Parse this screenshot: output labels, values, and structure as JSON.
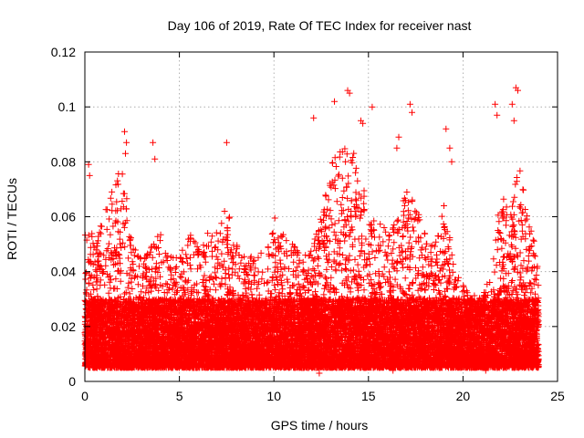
{
  "chart_data": {
    "type": "scatter",
    "title": "Day 106 of 2019, Rate Of TEC Index for receiver nast",
    "xlabel": "GPS time / hours",
    "ylabel": "ROTI / TECUs",
    "xlim": [
      0,
      25
    ],
    "ylim": [
      0,
      0.12
    ],
    "xticks": [
      0,
      5,
      10,
      15,
      20,
      25
    ],
    "xtick_labels": [
      "0",
      "5",
      "10",
      "15",
      "20",
      "25"
    ],
    "yticks": [
      0,
      0.02,
      0.04,
      0.06,
      0.08,
      0.1,
      0.12
    ],
    "ytick_labels": [
      "0",
      "0.02",
      "0.04",
      "0.06",
      "0.08",
      "0.1",
      "0.12"
    ],
    "grid": true,
    "marker": "+",
    "series_color": "#ff0000",
    "x_range_data": [
      0,
      24
    ],
    "baseline_range": [
      0.005,
      0.03
    ],
    "envelope": {
      "hours": [
        0,
        0.5,
        1,
        1.5,
        2,
        2.5,
        3,
        3.5,
        4,
        4.5,
        5,
        5.5,
        6,
        6.5,
        7,
        7.5,
        8,
        8.5,
        9,
        9.5,
        10,
        10.5,
        11,
        11.5,
        12,
        12.5,
        13,
        13.5,
        14,
        14.5,
        15,
        15.5,
        16,
        16.5,
        17,
        17.5,
        18,
        18.5,
        19,
        19.5,
        20,
        20.5,
        21,
        21.5,
        22,
        22.5,
        23,
        23.5,
        24
      ],
      "max_roti": [
        0.065,
        0.05,
        0.06,
        0.072,
        0.08,
        0.05,
        0.045,
        0.05,
        0.055,
        0.045,
        0.05,
        0.055,
        0.05,
        0.055,
        0.055,
        0.065,
        0.05,
        0.045,
        0.05,
        0.045,
        0.06,
        0.055,
        0.05,
        0.045,
        0.05,
        0.06,
        0.08,
        0.085,
        0.09,
        0.075,
        0.065,
        0.06,
        0.055,
        0.06,
        0.07,
        0.065,
        0.055,
        0.05,
        0.065,
        0.045,
        0.035,
        0.035,
        0.03,
        0.04,
        0.07,
        0.06,
        0.085,
        0.06,
        0.045
      ]
    },
    "outliers": [
      [
        0.2,
        0.079
      ],
      [
        0.25,
        0.075
      ],
      [
        2.1,
        0.091
      ],
      [
        2.2,
        0.087
      ],
      [
        2.15,
        0.083
      ],
      [
        3.6,
        0.087
      ],
      [
        3.7,
        0.081
      ],
      [
        7.5,
        0.087
      ],
      [
        12.1,
        0.096
      ],
      [
        13.2,
        0.102
      ],
      [
        13.9,
        0.106
      ],
      [
        14.0,
        0.105
      ],
      [
        14.6,
        0.095
      ],
      [
        14.7,
        0.094
      ],
      [
        15.2,
        0.1
      ],
      [
        16.5,
        0.085
      ],
      [
        16.6,
        0.089
      ],
      [
        17.2,
        0.101
      ],
      [
        17.3,
        0.098
      ],
      [
        19.1,
        0.092
      ],
      [
        19.3,
        0.085
      ],
      [
        19.4,
        0.08
      ],
      [
        21.7,
        0.101
      ],
      [
        21.8,
        0.097
      ],
      [
        22.6,
        0.101
      ],
      [
        22.8,
        0.107
      ],
      [
        22.9,
        0.106
      ],
      [
        22.7,
        0.095
      ],
      [
        12.4,
        0.003
      ],
      [
        21.2,
        0.004
      ],
      [
        1.2,
        0.005
      ],
      [
        5.0,
        0.005
      ],
      [
        16.3,
        0.004
      ]
    ],
    "point_count": 16000,
    "seed": 106
  }
}
